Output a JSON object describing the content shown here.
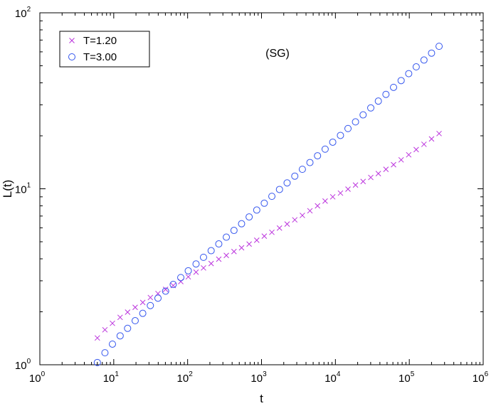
{
  "chart_data": {
    "type": "scatter",
    "xscale": "log",
    "yscale": "log",
    "xlim": [
      1,
      1000000
    ],
    "ylim": [
      1,
      100
    ],
    "xlabel": "t",
    "ylabel": "L(t)",
    "annotation": "(SG)",
    "legend_position": "top-left",
    "x_ticks": [
      {
        "base": "10",
        "exp": "0",
        "value": 1
      },
      {
        "base": "10",
        "exp": "1",
        "value": 10
      },
      {
        "base": "10",
        "exp": "2",
        "value": 100
      },
      {
        "base": "10",
        "exp": "3",
        "value": 1000
      },
      {
        "base": "10",
        "exp": "4",
        "value": 10000
      },
      {
        "base": "10",
        "exp": "5",
        "value": 100000
      },
      {
        "base": "10",
        "exp": "6",
        "value": 1000000
      }
    ],
    "y_ticks": [
      {
        "base": "10",
        "exp": "0",
        "value": 1
      },
      {
        "base": "10",
        "exp": "1",
        "value": 10
      },
      {
        "base": "10",
        "exp": "2",
        "value": 100
      }
    ],
    "series": [
      {
        "name": "T=1.20",
        "marker": "x",
        "color": "#bb33dd",
        "points": [
          [
            6.0,
            1.42
          ],
          [
            7.6,
            1.58
          ],
          [
            9.6,
            1.72
          ],
          [
            12.2,
            1.86
          ],
          [
            15.4,
            1.99
          ],
          [
            19.5,
            2.12
          ],
          [
            24.7,
            2.26
          ],
          [
            31.3,
            2.41
          ],
          [
            39.7,
            2.54
          ],
          [
            50.3,
            2.68
          ],
          [
            63.8,
            2.82
          ],
          [
            80.8,
            2.97
          ],
          [
            102,
            3.16
          ],
          [
            130,
            3.36
          ],
          [
            164,
            3.55
          ],
          [
            208,
            3.76
          ],
          [
            264,
            3.98
          ],
          [
            334,
            4.18
          ],
          [
            424,
            4.4
          ],
          [
            537,
            4.62
          ],
          [
            680,
            4.85
          ],
          [
            862,
            5.1
          ],
          [
            1090,
            5.38
          ],
          [
            1380,
            5.66
          ],
          [
            1750,
            5.98
          ],
          [
            2220,
            6.3
          ],
          [
            2820,
            6.66
          ],
          [
            3570,
            7.06
          ],
          [
            4520,
            7.5
          ],
          [
            5730,
            8.0
          ],
          [
            7260,
            8.52
          ],
          [
            9200,
            9.0
          ],
          [
            11700,
            9.45
          ],
          [
            14800,
            9.95
          ],
          [
            18700,
            10.5
          ],
          [
            23700,
            11.0
          ],
          [
            30100,
            11.6
          ],
          [
            38100,
            12.2
          ],
          [
            48300,
            12.9
          ],
          [
            61200,
            13.7
          ],
          [
            77500,
            14.6
          ],
          [
            98200,
            15.6
          ],
          [
            124000,
            16.7
          ],
          [
            158000,
            17.9
          ],
          [
            200000,
            19.2
          ],
          [
            253000,
            20.6
          ]
        ]
      },
      {
        "name": "T=3.00",
        "marker": "o",
        "color": "#3355ee",
        "points": [
          [
            6.0,
            1.03
          ],
          [
            7.6,
            1.17
          ],
          [
            9.6,
            1.31
          ],
          [
            12.2,
            1.46
          ],
          [
            15.4,
            1.61
          ],
          [
            19.5,
            1.78
          ],
          [
            24.7,
            1.96
          ],
          [
            31.3,
            2.17
          ],
          [
            39.7,
            2.39
          ],
          [
            50.3,
            2.62
          ],
          [
            63.8,
            2.86
          ],
          [
            80.8,
            3.13
          ],
          [
            102,
            3.42
          ],
          [
            130,
            3.74
          ],
          [
            164,
            4.08
          ],
          [
            208,
            4.45
          ],
          [
            264,
            4.86
          ],
          [
            334,
            5.31
          ],
          [
            424,
            5.8
          ],
          [
            537,
            6.33
          ],
          [
            680,
            6.92
          ],
          [
            862,
            7.57
          ],
          [
            1090,
            8.28
          ],
          [
            1380,
            9.06
          ],
          [
            1750,
            9.91
          ],
          [
            2220,
            10.8
          ],
          [
            2820,
            11.8
          ],
          [
            3570,
            12.9
          ],
          [
            4520,
            14.1
          ],
          [
            5730,
            15.4
          ],
          [
            7260,
            16.8
          ],
          [
            9200,
            18.4
          ],
          [
            11700,
            20.1
          ],
          [
            14800,
            22.0
          ],
          [
            18700,
            24.0
          ],
          [
            23700,
            26.3
          ],
          [
            30100,
            28.8
          ],
          [
            38100,
            31.5
          ],
          [
            48300,
            34.4
          ],
          [
            61200,
            37.7
          ],
          [
            77500,
            41.2
          ],
          [
            98200,
            45.1
          ],
          [
            124000,
            49.3
          ],
          [
            158000,
            53.9
          ],
          [
            200000,
            59.0
          ],
          [
            253000,
            64.5
          ]
        ]
      }
    ]
  }
}
